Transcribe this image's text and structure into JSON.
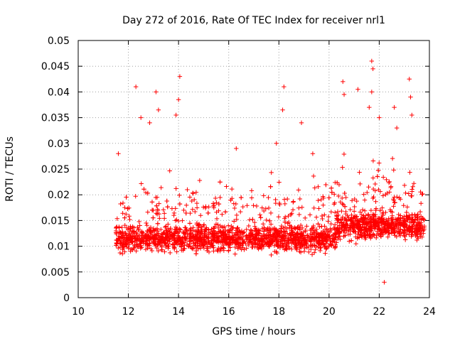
{
  "chart_data": {
    "type": "scatter",
    "title": "Day 272 of 2016, Rate Of TEC Index for receiver nrl1",
    "xlabel": "GPS time / hours",
    "ylabel": "ROTI / TECUs",
    "xlim": [
      10,
      24
    ],
    "ylim": [
      0,
      0.05
    ],
    "x_ticks": [
      10,
      12,
      14,
      16,
      18,
      20,
      22,
      24
    ],
    "x_tick_labels": [
      "10",
      "12",
      "14",
      "16",
      "18",
      "20",
      "22",
      "24"
    ],
    "y_ticks": [
      0,
      0.005,
      0.01,
      0.015,
      0.02,
      0.025,
      0.03,
      0.035,
      0.04,
      0.045,
      0.05
    ],
    "y_tick_labels": [
      "0",
      "0.005",
      "0.01",
      "0.015",
      "0.02",
      "0.025",
      "0.03",
      "0.035",
      "0.04",
      "0.045",
      "0.05"
    ],
    "grid": true,
    "marker": "+",
    "series": [
      {
        "name": "ROTI",
        "color": "#ff0000",
        "x_range": [
          11.5,
          23.8
        ],
        "typical_y_range": [
          0.005,
          0.02
        ],
        "notable_points": [
          {
            "x": 11.6,
            "y": 0.028
          },
          {
            "x": 12.3,
            "y": 0.041
          },
          {
            "x": 12.5,
            "y": 0.035
          },
          {
            "x": 12.85,
            "y": 0.034
          },
          {
            "x": 13.1,
            "y": 0.04
          },
          {
            "x": 13.2,
            "y": 0.0365
          },
          {
            "x": 13.9,
            "y": 0.0355
          },
          {
            "x": 14.05,
            "y": 0.043
          },
          {
            "x": 14.0,
            "y": 0.0385
          },
          {
            "x": 14.35,
            "y": 0.021
          },
          {
            "x": 16.3,
            "y": 0.029
          },
          {
            "x": 17.9,
            "y": 0.03
          },
          {
            "x": 18.2,
            "y": 0.041
          },
          {
            "x": 18.15,
            "y": 0.0365
          },
          {
            "x": 18.9,
            "y": 0.034
          },
          {
            "x": 19.35,
            "y": 0.028
          },
          {
            "x": 20.55,
            "y": 0.042
          },
          {
            "x": 20.6,
            "y": 0.0395
          },
          {
            "x": 21.15,
            "y": 0.0405
          },
          {
            "x": 21.6,
            "y": 0.037
          },
          {
            "x": 21.7,
            "y": 0.046
          },
          {
            "x": 21.75,
            "y": 0.0445
          },
          {
            "x": 21.7,
            "y": 0.04
          },
          {
            "x": 22.0,
            "y": 0.035
          },
          {
            "x": 22.2,
            "y": 0.003
          },
          {
            "x": 22.6,
            "y": 0.037
          },
          {
            "x": 22.7,
            "y": 0.033
          },
          {
            "x": 23.2,
            "y": 0.0425
          },
          {
            "x": 23.25,
            "y": 0.039
          },
          {
            "x": 23.3,
            "y": 0.0355
          }
        ]
      }
    ]
  }
}
